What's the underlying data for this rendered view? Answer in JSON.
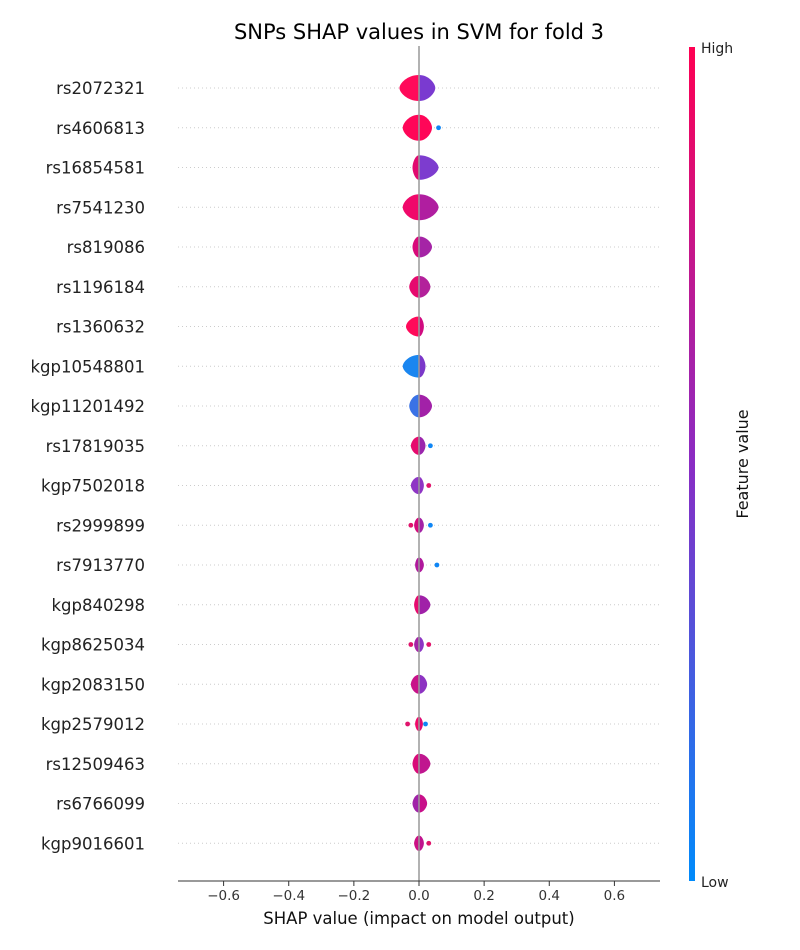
{
  "chart_data": {
    "type": "violin",
    "title": "SNPs SHAP values in SVM for fold 3",
    "xlabel": "SHAP value (impact on model output)",
    "ylabel": "",
    "xlim": [
      -0.74,
      0.74
    ],
    "xticks": [
      -0.6,
      -0.4,
      -0.2,
      0.0,
      0.2,
      0.4,
      0.6
    ],
    "xtick_labels": [
      "−0.6",
      "−0.4",
      "−0.2",
      "0.0",
      "0.2",
      "0.4",
      "0.6"
    ],
    "grid": false,
    "colorbar": {
      "title": "Feature value",
      "high_label": "High",
      "low_label": "Low",
      "high_color": "#ff0052",
      "mid_color": "#8a2cc4",
      "low_color": "#008bfb"
    },
    "features": [
      {
        "name": "rs2072321",
        "shap_min": -0.06,
        "shap_max": 0.05,
        "outliers": [],
        "color_neg": "#ff0a5a",
        "color_pos": "#7a3ad0"
      },
      {
        "name": "rs4606813",
        "shap_min": -0.05,
        "shap_max": 0.04,
        "outliers": [
          0.06
        ],
        "color_neg": "#ff0658",
        "color_pos": "#ff0658"
      },
      {
        "name": "rs16854581",
        "shap_min": -0.02,
        "shap_max": 0.06,
        "outliers": [],
        "color_neg": "#e1096f",
        "color_pos": "#7d3ccf"
      },
      {
        "name": "rs7541230",
        "shap_min": -0.05,
        "shap_max": 0.06,
        "outliers": [],
        "color_neg": "#f0086a",
        "color_pos": "#b01ea0"
      },
      {
        "name": "rs819086",
        "shap_min": -0.02,
        "shap_max": 0.04,
        "outliers": [],
        "color_neg": "#d8097a",
        "color_pos": "#a524a6"
      },
      {
        "name": "rs1196184",
        "shap_min": -0.03,
        "shap_max": 0.035,
        "outliers": [],
        "color_neg": "#e60a6e",
        "color_pos": "#b3219b"
      },
      {
        "name": "rs1360632",
        "shap_min": -0.04,
        "shap_max": 0.015,
        "outliers": [],
        "color_neg": "#ff0a5a",
        "color_pos": "#d00b80"
      },
      {
        "name": "kgp10548801",
        "shap_min": -0.05,
        "shap_max": 0.02,
        "outliers": [],
        "color_neg": "#1a86f0",
        "color_pos": "#7b38c9"
      },
      {
        "name": "kgp11201492",
        "shap_min": -0.03,
        "shap_max": 0.04,
        "outliers": [],
        "color_neg": "#3a72e6",
        "color_pos": "#a221a8"
      },
      {
        "name": "rs17819035",
        "shap_min": -0.025,
        "shap_max": 0.02,
        "outliers": [
          0.035
        ],
        "color_neg": "#e60a6e",
        "color_pos": "#9b26ad"
      },
      {
        "name": "kgp7502018",
        "shap_min": -0.025,
        "shap_max": 0.015,
        "outliers": [
          0.03
        ],
        "color_neg": "#8f35c5",
        "color_pos": "#8f35c5"
      },
      {
        "name": "rs2999899",
        "shap_min": -0.015,
        "shap_max": 0.015,
        "outliers": [
          -0.025,
          0.035
        ],
        "color_neg": "#d30a7c",
        "color_pos": "#a422a6"
      },
      {
        "name": "rs7913770",
        "shap_min": -0.012,
        "shap_max": 0.015,
        "outliers": [
          0.055
        ],
        "color_neg": "#b0189c",
        "color_pos": "#b0189c"
      },
      {
        "name": "kgp840298",
        "shap_min": -0.015,
        "shap_max": 0.035,
        "outliers": [],
        "color_neg": "#e60a6e",
        "color_pos": "#a021a8"
      },
      {
        "name": "kgp8625034",
        "shap_min": -0.015,
        "shap_max": 0.015,
        "outliers": [
          -0.025,
          0.03
        ],
        "color_neg": "#a523a6",
        "color_pos": "#8d36c4"
      },
      {
        "name": "kgp2083150",
        "shap_min": -0.025,
        "shap_max": 0.025,
        "outliers": [],
        "color_neg": "#c8128a",
        "color_pos": "#8d33c2"
      },
      {
        "name": "kgp2579012",
        "shap_min": -0.012,
        "shap_max": 0.012,
        "outliers": [
          -0.035,
          0.02
        ],
        "color_neg": "#f00868",
        "color_pos": "#e00a72"
      },
      {
        "name": "rs12509463",
        "shap_min": -0.02,
        "shap_max": 0.035,
        "outliers": [],
        "color_neg": "#d80b79",
        "color_pos": "#c0168f"
      },
      {
        "name": "rs6766099",
        "shap_min": -0.02,
        "shap_max": 0.025,
        "outliers": [],
        "color_neg": "#a022a8",
        "color_pos": "#c8108a"
      },
      {
        "name": "kgp9016601",
        "shap_min": -0.015,
        "shap_max": 0.015,
        "outliers": [
          0.03
        ],
        "color_neg": "#cc0f84",
        "color_pos": "#c0148e"
      }
    ]
  }
}
